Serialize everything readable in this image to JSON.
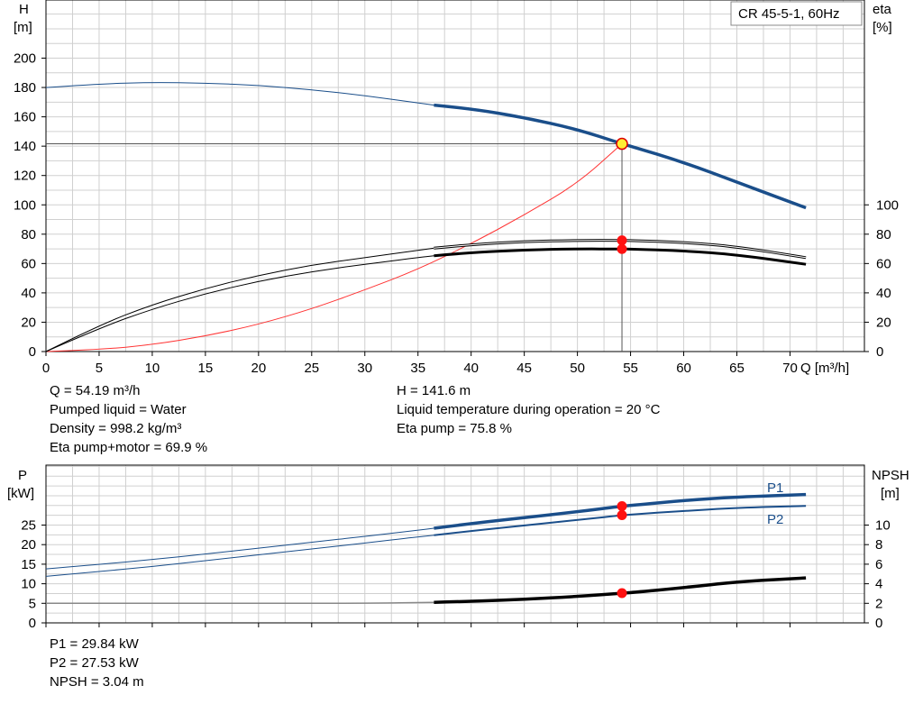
{
  "model_label": "CR 45-5-1, 60Hz",
  "info": {
    "q": "Q = 54.19 m³/h",
    "liquid": "Pumped liquid = Water",
    "density": "Density = 998.2 kg/m³",
    "eta_pm": "Eta pump+motor = 69.9 %",
    "h": "H = 141.6 m",
    "temp": "Liquid temperature during operation = 20 °C",
    "eta_pump": "Eta pump = 75.8 %",
    "p1": "P1 = 29.84 kW",
    "p2": "P2 = 27.53 kW",
    "npsh": "NPSH = 3.04 m"
  },
  "colors": {
    "head": "#1a4e8a",
    "eta": "#000000",
    "system": "#ff3333",
    "power": "#1a4e8a",
    "npsh": "#000000",
    "marker": "#ff1111",
    "duty_fill": "#ffee33",
    "grid": "#d0d0d0"
  },
  "chart_data": [
    {
      "type": "line",
      "title": "",
      "xlabel": "Q [m³/h]",
      "xlim": [
        0,
        77
      ],
      "x_ticks": [
        "0",
        "5",
        "10",
        "15",
        "20",
        "25",
        "30",
        "35",
        "40",
        "45",
        "50",
        "55",
        "60",
        "65",
        "70"
      ],
      "ylabel_left": [
        "H",
        "[m]"
      ],
      "ylim_left": [
        0,
        200
      ],
      "y_ticks_left": [
        "0",
        "20",
        "40",
        "60",
        "80",
        "100",
        "120",
        "140",
        "160",
        "180",
        "200"
      ],
      "ylabel_right": [
        "eta",
        "[%]"
      ],
      "y_ticks_right": [
        "0",
        "20",
        "40",
        "60",
        "80",
        "100"
      ],
      "grid": true,
      "duty_point": {
        "q": 54.19,
        "h": 141.6,
        "eta_pump": 75.8,
        "eta_pump_motor": 69.9
      },
      "operating_range_start": 36.5,
      "series": [
        {
          "axis": "left",
          "x": [
            0,
            5,
            10,
            15,
            20,
            25,
            30,
            35,
            36.5,
            40,
            45,
            50,
            54.19,
            55,
            60,
            65,
            71.5
          ],
          "values": [
            180,
            182.5,
            183.5,
            183,
            181.5,
            178.5,
            174.5,
            169.5,
            168,
            165.5,
            159.5,
            151.5,
            141.6,
            140,
            129,
            115.5,
            98
          ]
        },
        {
          "axis": "left",
          "x": [
            0,
            5,
            10,
            15,
            20,
            25,
            30,
            35,
            40,
            45,
            50,
            54.19
          ],
          "values": [
            0,
            1.2,
            4.7,
            10.5,
            18.5,
            29,
            42,
            56,
            73.5,
            93,
            114.5,
            141.6
          ]
        },
        {
          "axis": "right",
          "x": [
            0,
            5,
            10,
            15,
            20,
            25,
            30,
            35,
            36.5,
            40,
            45,
            50,
            54.19,
            55,
            60,
            65,
            71.5
          ],
          "values": [
            0,
            18,
            32,
            43,
            52,
            59,
            64,
            69,
            70.5,
            73,
            75,
            75.8,
            75.8,
            75.7,
            74.5,
            71.5,
            64
          ]
        },
        {
          "axis": "right",
          "x": [
            0,
            5,
            10,
            15,
            20,
            25,
            30,
            35,
            36.5,
            40,
            45,
            50,
            54.19,
            55,
            60,
            65,
            71.5
          ],
          "values": [
            0,
            16,
            29,
            39.5,
            48,
            54.5,
            59.5,
            64,
            65.3,
            67.5,
            69.3,
            70,
            69.9,
            69.8,
            68.7,
            66,
            59.5
          ]
        }
      ]
    },
    {
      "type": "line",
      "title": "",
      "xlim": [
        0,
        77
      ],
      "x_ticks": [],
      "ylabel_left": [
        "P",
        "[kW]"
      ],
      "ylim_left": [
        0,
        35
      ],
      "y_ticks_left": [
        "0",
        "5",
        "10",
        "15",
        "20",
        "25"
      ],
      "ylabel_right": [
        "NPSH",
        "[m]"
      ],
      "y_ticks_right": [
        "0",
        "2",
        "4",
        "6",
        "8",
        "10"
      ],
      "grid": true,
      "operating_range_start": 36.5,
      "series": [
        {
          "name": "P1",
          "axis": "left",
          "x": [
            0,
            5,
            10,
            15,
            20,
            25,
            30,
            35,
            36.5,
            40,
            45,
            50,
            54.19,
            55,
            60,
            65,
            71.5
          ],
          "values": [
            13.8,
            14.9,
            16.2,
            17.6,
            19.1,
            20.6,
            22.1,
            23.7,
            24.2,
            25.4,
            26.9,
            28.4,
            29.84,
            30,
            31.3,
            32.2,
            32.8
          ]
        },
        {
          "name": "P2",
          "axis": "left",
          "x": [
            0,
            5,
            10,
            15,
            20,
            25,
            30,
            35,
            36.5,
            40,
            45,
            50,
            54.19,
            55,
            60,
            65,
            71.5
          ],
          "values": [
            11.9,
            13.1,
            14.4,
            15.9,
            17.4,
            18.9,
            20.4,
            22,
            22.4,
            23.5,
            24.9,
            26.3,
            27.53,
            27.7,
            28.6,
            29.4,
            29.9
          ]
        },
        {
          "axis": "right",
          "x": [
            0,
            10,
            20,
            30,
            36.5,
            40,
            45,
            50,
            54.19,
            55,
            60,
            65,
            71.5
          ],
          "values": [
            2,
            2,
            2,
            2,
            2.1,
            2.2,
            2.4,
            2.7,
            3.04,
            3.1,
            3.6,
            4.2,
            4.6
          ]
        }
      ],
      "duty_point": {
        "q": 54.19,
        "p1": 29.84,
        "p2": 27.53,
        "npsh": 3.04
      }
    }
  ]
}
